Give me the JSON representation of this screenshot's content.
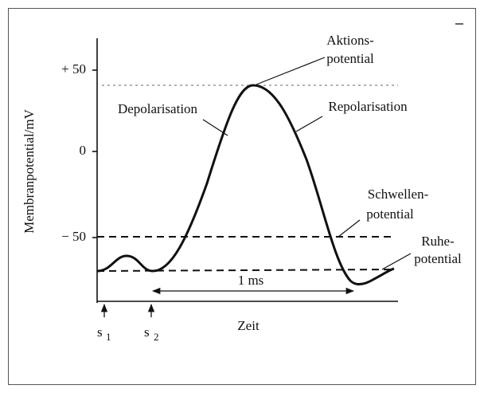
{
  "axis": {
    "label": "Membranpotential/mV",
    "ticks": [
      "+ 50",
      "0",
      "− 50"
    ],
    "x_label": "Zeit"
  },
  "annotations": {
    "peak": [
      "Aktions-",
      "potential"
    ],
    "depolarisation": "Depolarisation",
    "repolarisation": "Repolarisation",
    "threshold": [
      "Schwellen-",
      "potential"
    ],
    "resting": [
      "Ruhe-",
      "potential"
    ],
    "duration": "1 ms"
  },
  "stimuli": [
    {
      "letter": "s",
      "index": "1"
    },
    {
      "letter": "s",
      "index": "2"
    }
  ]
}
